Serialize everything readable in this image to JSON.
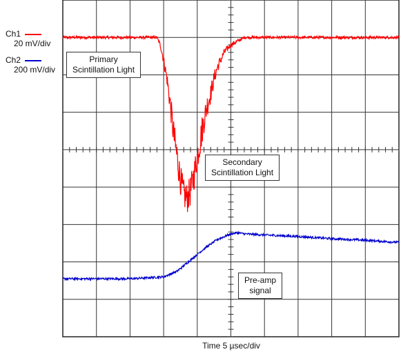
{
  "chart_data": {
    "type": "line",
    "title": "",
    "xlabel": "Time 5 µsec/div",
    "ylabel": "",
    "x_divisions": 10,
    "y_divisions": 9,
    "grid": true,
    "legend_position": "left",
    "series": [
      {
        "name": "Ch1",
        "scale": "20 mV/div",
        "color": "#ff0000",
        "x_div": [
          0,
          1.0,
          2.0,
          2.8,
          2.9,
          3.0,
          3.1,
          3.2,
          3.3,
          3.4,
          3.5,
          3.6,
          3.7,
          3.8,
          3.9,
          4.0,
          4.1,
          4.2,
          4.3,
          4.4,
          4.5,
          4.6,
          4.7,
          4.8,
          4.9,
          5.0,
          5.2,
          5.4,
          5.6,
          6.0,
          7.0,
          8.0,
          9.0,
          10.0
        ],
        "y_div": [
          8.0,
          8.0,
          8.0,
          8.0,
          7.8,
          7.4,
          6.9,
          6.2,
          5.4,
          4.8,
          4.2,
          3.8,
          3.7,
          3.9,
          4.3,
          4.8,
          5.3,
          5.8,
          6.2,
          6.5,
          6.9,
          7.2,
          7.4,
          7.6,
          7.7,
          7.8,
          7.9,
          8.0,
          8.0,
          8.0,
          8.0,
          8.0,
          8.0,
          8.0
        ],
        "noise_div": 0.15
      },
      {
        "name": "Ch2",
        "scale": "200 mV/div",
        "color": "#0000cc",
        "x_div": [
          0,
          1.0,
          2.0,
          3.0,
          3.4,
          3.8,
          4.2,
          4.6,
          5.0,
          5.2,
          5.4,
          6.0,
          7.0,
          8.0,
          9.0,
          10.0
        ],
        "y_div": [
          1.55,
          1.55,
          1.55,
          1.6,
          1.75,
          2.05,
          2.35,
          2.6,
          2.75,
          2.78,
          2.75,
          2.72,
          2.68,
          2.62,
          2.58,
          2.52
        ],
        "noise_div": 0.03
      }
    ],
    "annotations": [
      {
        "id": "primary",
        "lines": [
          "Primary",
          "Scintillation Light"
        ]
      },
      {
        "id": "secondary",
        "lines": [
          "Secondary",
          "Scintillation Light"
        ]
      },
      {
        "id": "preamp",
        "lines": [
          "Pre-amp",
          "signal"
        ]
      }
    ]
  }
}
